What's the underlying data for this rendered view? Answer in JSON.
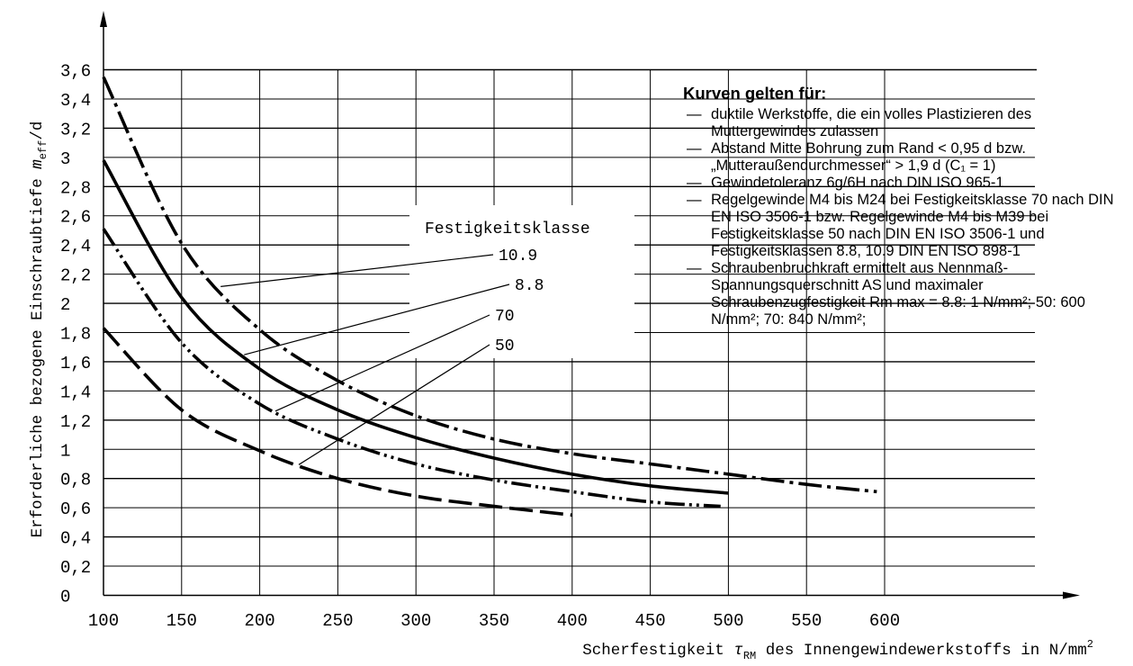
{
  "chart_data": {
    "type": "line",
    "title": "",
    "xlabel": "Scherfestigkeit τRM des Innengewindewerkstoffs in N/mm2",
    "ylabel": "Erforderliche bezogene Einschraubtiefe meff/d",
    "xlim": [
      100,
      600
    ],
    "ylim": [
      0,
      3.6
    ],
    "x_ticks": [
      "100",
      "150",
      "200",
      "250",
      "300",
      "350",
      "400",
      "450",
      "500",
      "550",
      "600"
    ],
    "y_ticks": [
      "0",
      "0,2",
      "0,4",
      "0,6",
      "0,8",
      "1",
      "1,2",
      "1,4",
      "1,6",
      "1,8",
      "2",
      "2,2",
      "2,4",
      "2,6",
      "2,8",
      "3",
      "3,2",
      "3,4",
      "3,6"
    ],
    "grid": "on",
    "legend_title": "Festigkeitsklasse",
    "series": [
      {
        "name": "10.9",
        "style": "dash-dot",
        "x": [
          100,
          150,
          200,
          250,
          300,
          350,
          400,
          450,
          500,
          550,
          595
        ],
        "y": [
          3.55,
          2.41,
          1.82,
          1.47,
          1.23,
          1.07,
          0.97,
          0.9,
          0.83,
          0.76,
          0.71
        ]
      },
      {
        "name": "8.8",
        "style": "solid",
        "x": [
          100,
          150,
          200,
          250,
          300,
          350,
          400,
          450,
          500
        ],
        "y": [
          2.98,
          2.04,
          1.55,
          1.27,
          1.08,
          0.94,
          0.83,
          0.75,
          0.7
        ]
      },
      {
        "name": "70",
        "style": "dash-dot-dot",
        "x": [
          100,
          150,
          200,
          250,
          300,
          350,
          400,
          450,
          495
        ],
        "y": [
          2.51,
          1.73,
          1.31,
          1.07,
          0.9,
          0.79,
          0.71,
          0.64,
          0.61
        ]
      },
      {
        "name": "50",
        "style": "long-dash",
        "x": [
          100,
          150,
          200,
          250,
          300,
          350,
          400
        ],
        "y": [
          1.83,
          1.27,
          0.99,
          0.8,
          0.68,
          0.61,
          0.55
        ]
      }
    ]
  },
  "notes": {
    "heading": "Kurven gelten für:",
    "items": [
      "duktile Werkstoffe, die ein volles Plastizieren des Muttergewindes zulassen",
      "Abstand Mitte Bohrung zum Rand < 0,95 d bzw. „Mutteraußendurchmesser“ > 1,9 d (C₁ = 1)",
      "Gewindetoleranz 6g/6H nach DIN ISO 965-1",
      "Regelgewinde M4 bis M24 bei Festigkeitsklasse 70 nach DIN EN ISO 3506-1 bzw. Regelgewinde M4 bis M39 bei Festigkeitsklasse 50 nach DIN EN ISO 3506-1 und Festigkeitsklassen 8.8, 10.9 DIN EN ISO 898-1",
      "Schraubenbruchkraft ermittelt aus Nennmaß-Spannungsquerschnitt AS und maximaler Schraubenzugfestigkeit Rm max = 8.8: 1 N/mm²; 50: 600 N/mm²; 70: 840 N/mm²;"
    ]
  }
}
